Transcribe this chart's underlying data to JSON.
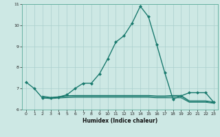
{
  "title": "",
  "xlabel": "Humidex (Indice chaleur)",
  "bg_color": "#cde8e4",
  "line_color": "#1a7a6e",
  "grid_color": "#aacfcc",
  "xlim": [
    -0.5,
    23.5
  ],
  "ylim": [
    6,
    11
  ],
  "yticks": [
    6,
    7,
    8,
    9,
    10,
    11
  ],
  "xticks": [
    0,
    1,
    2,
    3,
    4,
    5,
    6,
    7,
    8,
    9,
    10,
    11,
    12,
    13,
    14,
    15,
    16,
    17,
    18,
    19,
    20,
    21,
    22,
    23
  ],
  "series": [
    {
      "x": [
        0,
        1,
        2,
        3,
        4,
        5,
        6,
        7,
        8,
        9,
        10,
        11,
        12,
        13,
        14,
        15,
        16,
        17,
        18,
        19,
        20,
        21,
        22,
        23
      ],
      "y": [
        7.3,
        7.0,
        6.55,
        6.55,
        6.6,
        6.7,
        7.0,
        7.25,
        7.25,
        7.7,
        8.4,
        9.2,
        9.5,
        10.1,
        10.9,
        10.4,
        9.1,
        7.75,
        6.5,
        6.65,
        6.8,
        6.8,
        6.8,
        6.35
      ],
      "marker": "D",
      "markersize": 2.0,
      "linewidth": 1.0
    },
    {
      "x": [
        2,
        3,
        4,
        5,
        6,
        7,
        8,
        9,
        10,
        11,
        12,
        13,
        14,
        15,
        16,
        17,
        18,
        19,
        20,
        21,
        22,
        23
      ],
      "y": [
        6.56,
        6.52,
        6.55,
        6.57,
        6.58,
        6.58,
        6.58,
        6.58,
        6.58,
        6.58,
        6.58,
        6.58,
        6.58,
        6.58,
        6.56,
        6.56,
        6.56,
        6.56,
        6.35,
        6.35,
        6.35,
        6.3
      ],
      "marker": null,
      "markersize": 0,
      "linewidth": 0.8
    },
    {
      "x": [
        2,
        3,
        4,
        5,
        6,
        7,
        8,
        9,
        10,
        11,
        12,
        13,
        14,
        15,
        16,
        17,
        18,
        19,
        20,
        21,
        22,
        23
      ],
      "y": [
        6.6,
        6.55,
        6.58,
        6.62,
        6.63,
        6.63,
        6.63,
        6.63,
        6.63,
        6.63,
        6.63,
        6.63,
        6.63,
        6.63,
        6.61,
        6.61,
        6.63,
        6.63,
        6.38,
        6.38,
        6.38,
        6.33
      ],
      "marker": null,
      "markersize": 0,
      "linewidth": 0.8
    },
    {
      "x": [
        2,
        3,
        4,
        5,
        6,
        7,
        8,
        9,
        10,
        11,
        12,
        13,
        14,
        15,
        16,
        17,
        18,
        19,
        20,
        21,
        22,
        23
      ],
      "y": [
        6.64,
        6.58,
        6.61,
        6.66,
        6.67,
        6.67,
        6.67,
        6.67,
        6.67,
        6.67,
        6.67,
        6.67,
        6.67,
        6.67,
        6.65,
        6.65,
        6.67,
        6.67,
        6.42,
        6.42,
        6.42,
        6.36
      ],
      "marker": null,
      "markersize": 0,
      "linewidth": 0.8
    }
  ]
}
